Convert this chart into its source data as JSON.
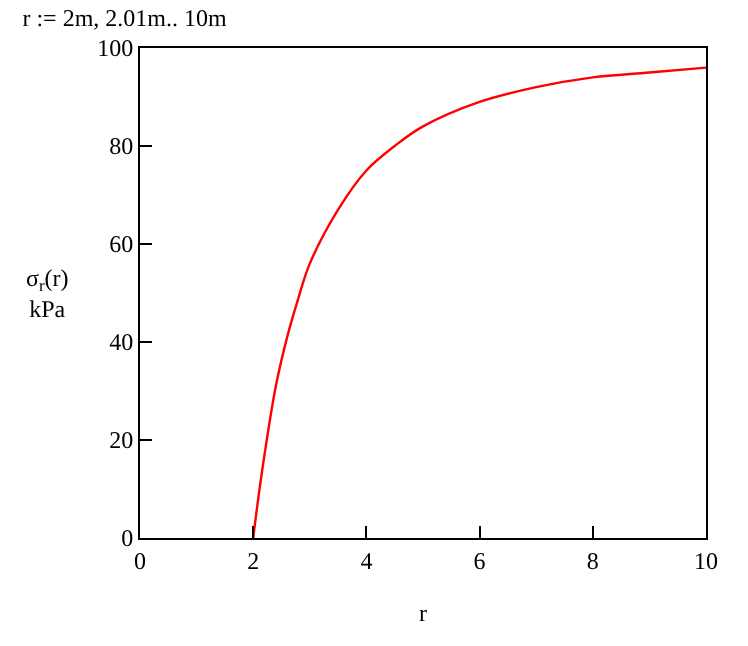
{
  "chart_data": {
    "type": "line",
    "title": "r := 2m, 2.01m.. 10m",
    "xlabel": "r",
    "ylabel": "σ$_{r}$(r)\nkPa",
    "x": [
      2,
      2.1,
      2.2,
      2.4,
      2.6,
      2.8,
      3,
      3.5,
      4,
      4.5,
      5,
      6,
      7,
      8,
      9,
      10
    ],
    "series": [
      {
        "color": "#ff0000",
        "values": [
          0,
          9,
          17,
          31,
          41,
          49,
          56,
          67,
          75,
          80,
          84,
          89,
          92,
          94,
          95,
          96
        ]
      }
    ],
    "xlim": [
      0,
      10
    ],
    "xticks": [
      0,
      2,
      4,
      6,
      8,
      10
    ],
    "ylim": [
      0,
      100
    ],
    "yticks": [
      0,
      20,
      40,
      60,
      80,
      100
    ],
    "legend": false,
    "marker": "none",
    "line_style": "solid"
  }
}
